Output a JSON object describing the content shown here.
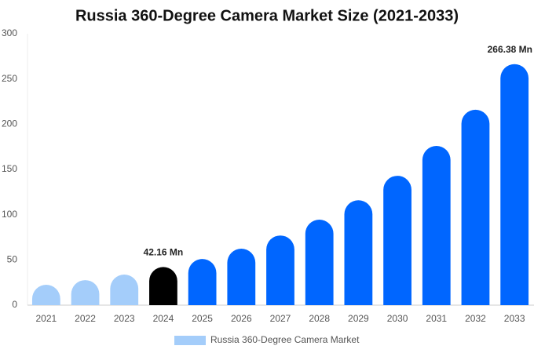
{
  "chart_data": {
    "type": "bar",
    "title": "Russia 360-Degree Camera Market Size (2021-2033)",
    "categories": [
      "2021",
      "2022",
      "2023",
      "2024",
      "2025",
      "2026",
      "2027",
      "2028",
      "2029",
      "2030",
      "2031",
      "2032",
      "2033"
    ],
    "series": [
      {
        "name": "Russia 360-Degree Camera Market",
        "color": "#a4cdfa",
        "colors": [
          "#a4cdfa",
          "#a4cdfa",
          "#a4cdfa",
          "#000000",
          "#0066ff",
          "#0066ff",
          "#0066ff",
          "#0066ff",
          "#0066ff",
          "#0066ff",
          "#0066ff",
          "#0066ff",
          "#0066ff"
        ],
        "values": [
          22.5,
          27.7,
          33.8,
          42.16,
          51,
          62.4,
          77,
          94.5,
          116,
          143,
          176,
          216,
          266.38
        ],
        "value_labels": [
          null,
          null,
          null,
          "42.16 Mn",
          null,
          null,
          null,
          null,
          null,
          null,
          null,
          null,
          "266.38 Mn"
        ]
      }
    ],
    "ylim": [
      0,
      300
    ],
    "yticks": [
      0,
      50,
      100,
      150,
      200,
      250,
      300
    ],
    "grid": false
  }
}
